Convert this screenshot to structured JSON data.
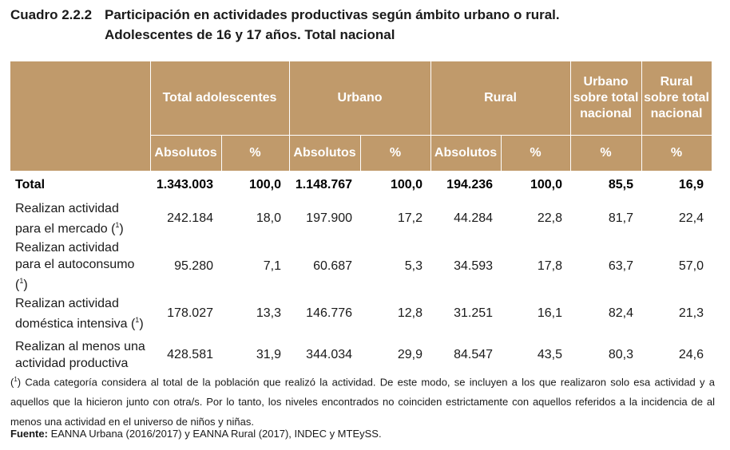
{
  "title": {
    "number": "Cuadro 2.2.2",
    "line1": "Participación en actividades productivas según ámbito urbano o rural.",
    "line2": "Adolescentes de 16 y 17 años. Total nacional"
  },
  "header": {
    "groups": [
      "Total adolescentes",
      "Urbano",
      "Rural",
      "Urbano sobre total nacional",
      "Rural sobre total nacional"
    ],
    "sub": [
      "Absolutos",
      "%",
      "Absolutos",
      "%",
      "Absolutos",
      "%",
      "%",
      "%"
    ]
  },
  "rows": [
    {
      "label": "Total",
      "note": "",
      "values": [
        "1.343.003",
        "100,0",
        "1.148.767",
        "100,0",
        "194.236",
        "100,0",
        "85,5",
        "16,9"
      ]
    },
    {
      "label": "Realizan actividad para el mercado (",
      "note": "1",
      "values": [
        "242.184",
        "18,0",
        "197.900",
        "17,2",
        "44.284",
        "22,8",
        "81,7",
        "22,4"
      ]
    },
    {
      "label": "Realizan actividad para el autoconsumo (",
      "note": "1",
      "values": [
        "95.280",
        "7,1",
        "60.687",
        "5,3",
        "34.593",
        "17,8",
        "63,7",
        "57,0"
      ]
    },
    {
      "label": "Realizan actividad doméstica intensiva (",
      "note": "1",
      "values": [
        "178.027",
        "13,3",
        "146.776",
        "12,8",
        "31.251",
        "16,1",
        "82,4",
        "21,3"
      ]
    },
    {
      "label": "Realizan al menos una actividad productiva",
      "note": "",
      "values": [
        "428.581",
        "31,9",
        "344.034",
        "29,9",
        "84.547",
        "43,5",
        "80,3",
        "24,6"
      ]
    }
  ],
  "footnote": {
    "mark": "1",
    "text": "Cada categoría considera al total de la población que realizó la actividad. De este modo, se incluyen a los que realizaron solo esa actividad y a aquellos que la hicieron junto con otra/s. Por lo tanto, los niveles encontrados no coinciden estrictamente con aquellos referidos a la incidencia de al menos una actividad en el universo de niños y niñas."
  },
  "source": {
    "label": "Fuente:",
    "text": "EANNA Urbana (2016/2017) y EANNA Rural (2017), INDEC y MTEySS."
  }
}
